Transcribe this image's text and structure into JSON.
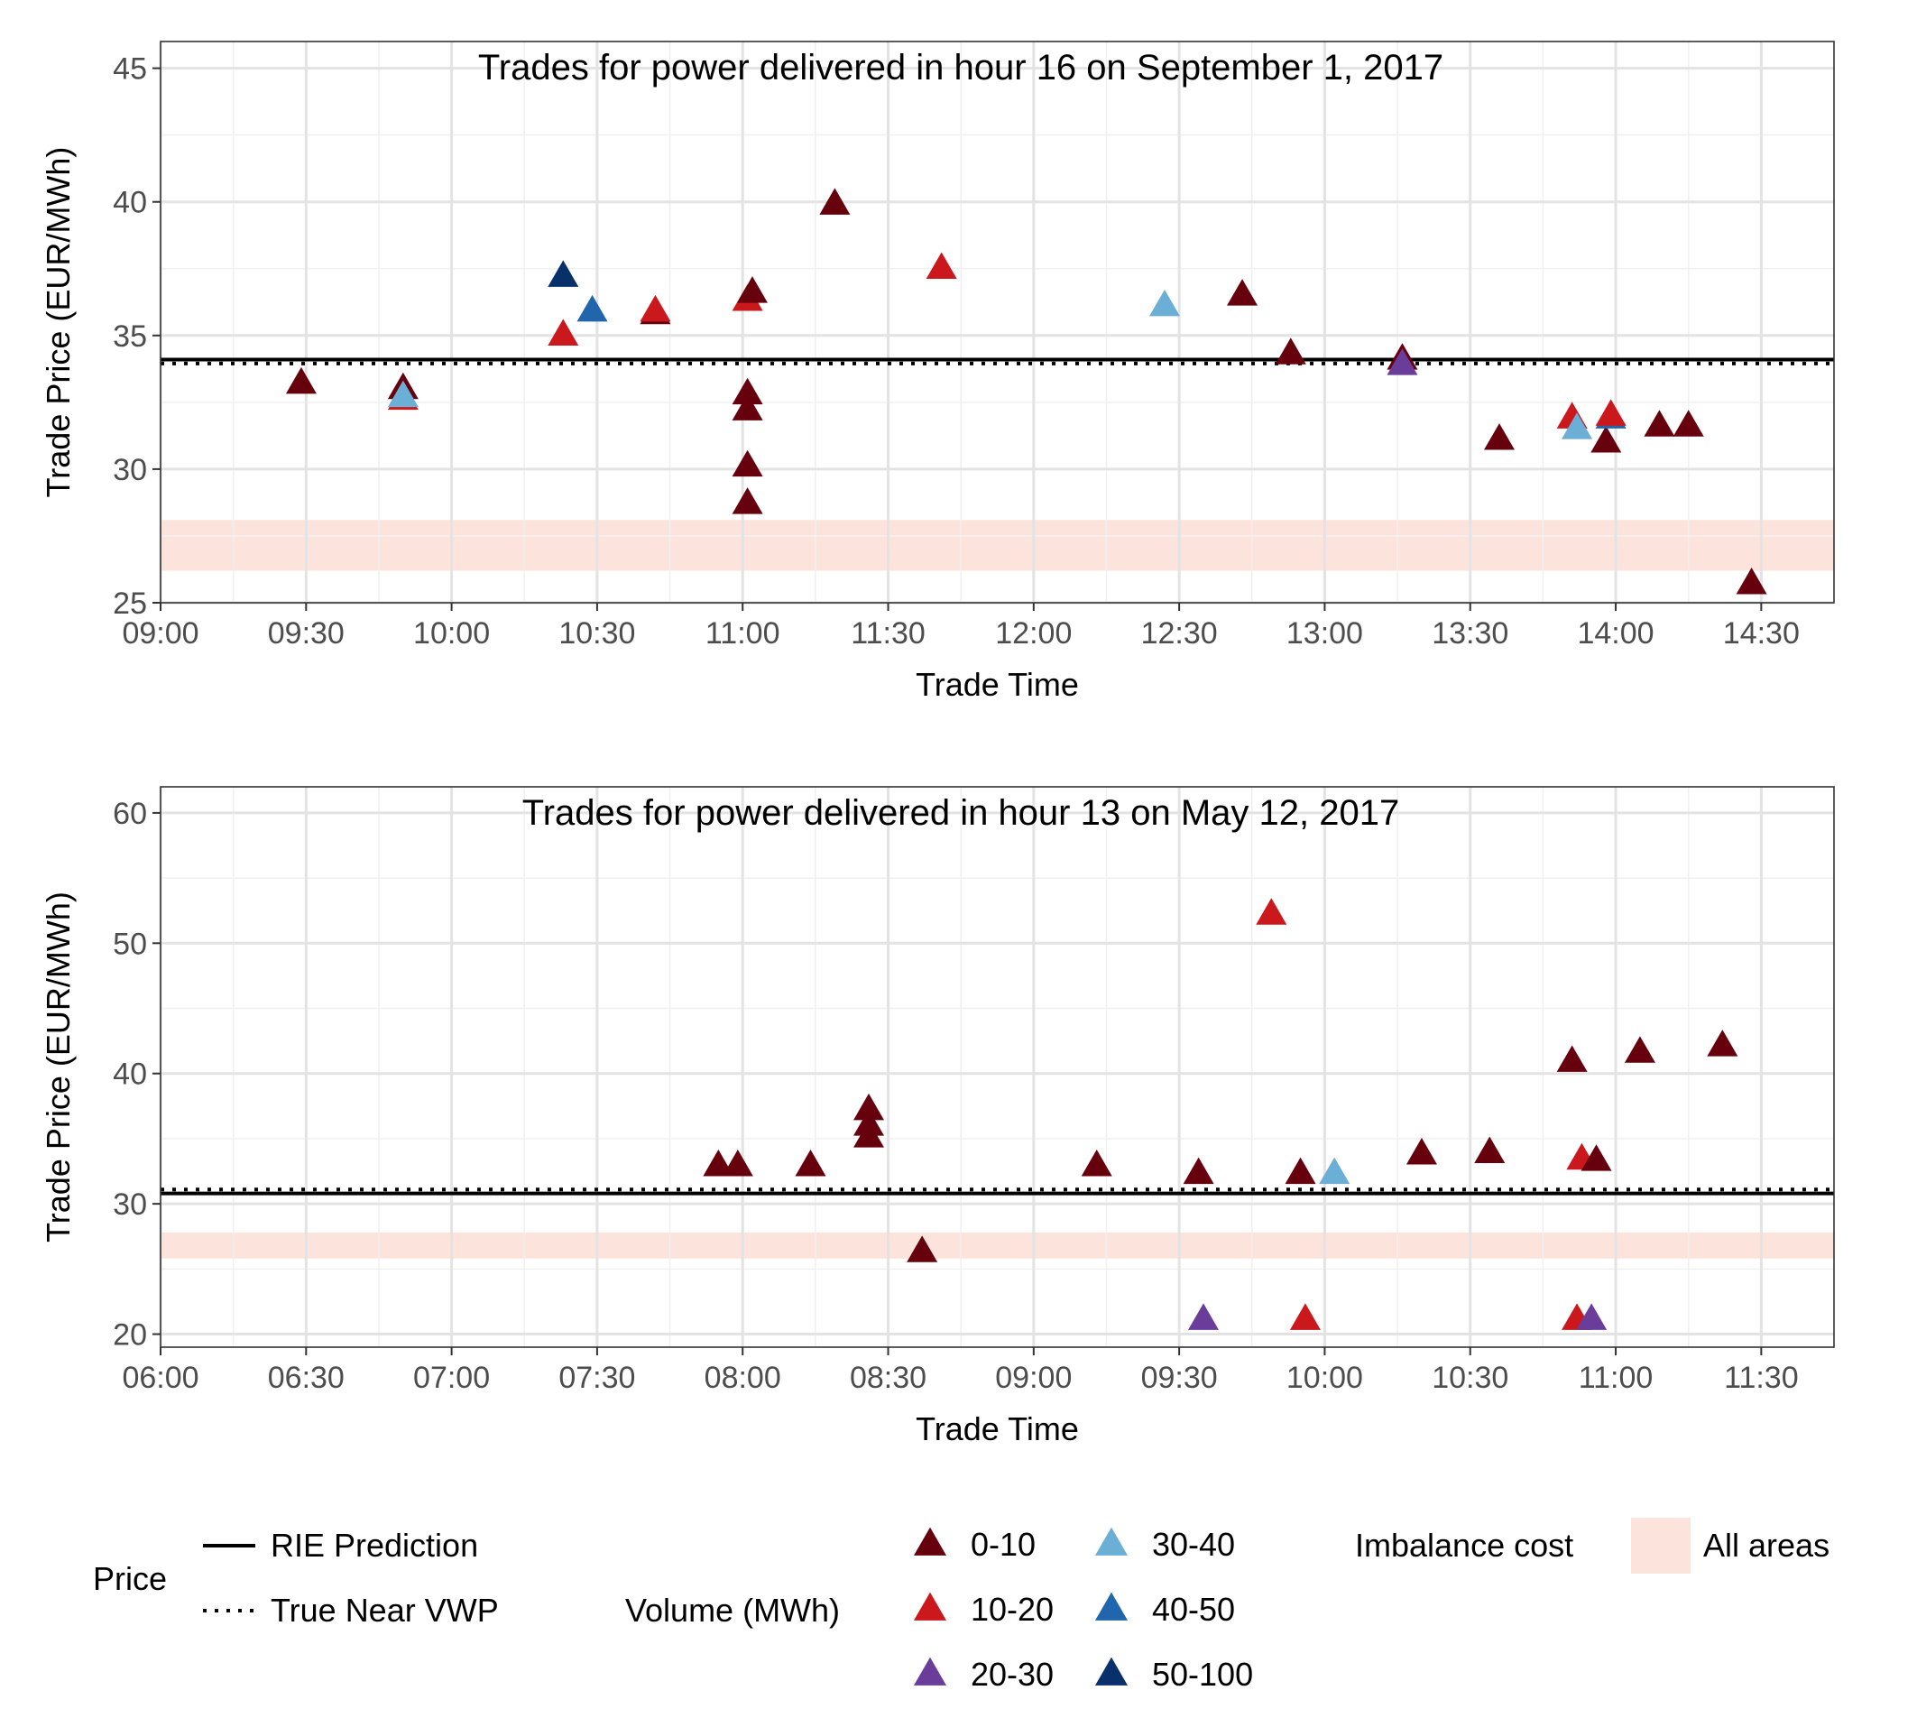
{
  "chart_data": [
    {
      "type": "scatter",
      "title": "Trades for power delivered in hour 16 on September 1, 2017",
      "xlabel": "Trade Time",
      "ylabel": "Trade Price (EUR/MWh)",
      "x_unit": "clock time (HH:MM)",
      "xlim": [
        "09:00",
        "14:45"
      ],
      "ylim": [
        25,
        46
      ],
      "xticks": [
        "09:00",
        "09:30",
        "10:00",
        "10:30",
        "11:00",
        "11:30",
        "12:00",
        "12:30",
        "13:00",
        "13:30",
        "14:00",
        "14:30"
      ],
      "yticks": [
        25,
        30,
        35,
        40,
        45
      ],
      "grid": true,
      "rie_prediction": 34.1,
      "true_near_vwp": 33.95,
      "imbalance_band": [
        26.2,
        28.1
      ],
      "points": [
        {
          "t": "09:29",
          "price": 33.2,
          "vol": "0-10"
        },
        {
          "t": "09:50",
          "price": 33.0,
          "vol": "0-10"
        },
        {
          "t": "09:50",
          "price": 32.6,
          "vol": "10-20"
        },
        {
          "t": "09:50",
          "price": 32.7,
          "vol": "30-40"
        },
        {
          "t": "10:23",
          "price": 35.0,
          "vol": "10-20"
        },
        {
          "t": "10:23",
          "price": 37.2,
          "vol": "50-100"
        },
        {
          "t": "10:29",
          "price": 35.9,
          "vol": "40-50"
        },
        {
          "t": "10:42",
          "price": 35.8,
          "vol": "0-10"
        },
        {
          "t": "10:42",
          "price": 35.9,
          "vol": "10-20"
        },
        {
          "t": "11:01",
          "price": 36.3,
          "vol": "10-20"
        },
        {
          "t": "11:02",
          "price": 36.6,
          "vol": "0-10"
        },
        {
          "t": "11:01",
          "price": 32.8,
          "vol": "0-10"
        },
        {
          "t": "11:01",
          "price": 32.2,
          "vol": "0-10"
        },
        {
          "t": "11:01",
          "price": 30.1,
          "vol": "0-10"
        },
        {
          "t": "11:01",
          "price": 28.7,
          "vol": "0-10"
        },
        {
          "t": "11:19",
          "price": 39.9,
          "vol": "0-10"
        },
        {
          "t": "11:41",
          "price": 37.5,
          "vol": "10-20"
        },
        {
          "t": "12:27",
          "price": 36.1,
          "vol": "30-40"
        },
        {
          "t": "12:43",
          "price": 36.5,
          "vol": "0-10"
        },
        {
          "t": "12:53",
          "price": 34.3,
          "vol": "0-10"
        },
        {
          "t": "13:16",
          "price": 34.1,
          "vol": "0-10"
        },
        {
          "t": "13:16",
          "price": 33.9,
          "vol": "20-30"
        },
        {
          "t": "13:36",
          "price": 31.1,
          "vol": "0-10"
        },
        {
          "t": "13:51",
          "price": 31.9,
          "vol": "10-20"
        },
        {
          "t": "13:52",
          "price": 31.5,
          "vol": "30-40"
        },
        {
          "t": "13:58",
          "price": 31.0,
          "vol": "0-10"
        },
        {
          "t": "13:59",
          "price": 31.9,
          "vol": "40-50"
        },
        {
          "t": "13:59",
          "price": 32.0,
          "vol": "10-20"
        },
        {
          "t": "14:09",
          "price": 31.6,
          "vol": "0-10"
        },
        {
          "t": "14:15",
          "price": 31.6,
          "vol": "0-10"
        },
        {
          "t": "14:28",
          "price": 25.7,
          "vol": "0-10"
        }
      ]
    },
    {
      "type": "scatter",
      "title": "Trades for power delivered in hour 13 on May 12, 2017",
      "xlabel": "Trade Time",
      "ylabel": "Trade Price (EUR/MWh)",
      "x_unit": "clock time (HH:MM)",
      "xlim": [
        "06:00",
        "11:45"
      ],
      "ylim": [
        19,
        62
      ],
      "xticks": [
        "06:00",
        "06:30",
        "07:00",
        "07:30",
        "08:00",
        "08:30",
        "09:00",
        "09:30",
        "10:00",
        "10:30",
        "11:00",
        "11:30"
      ],
      "yticks": [
        20,
        30,
        40,
        50,
        60
      ],
      "grid": true,
      "rie_prediction": 30.8,
      "true_near_vwp": 31.1,
      "imbalance_band": [
        25.8,
        27.8
      ],
      "points": [
        {
          "t": "07:55",
          "price": 32.9,
          "vol": "0-10"
        },
        {
          "t": "07:59",
          "price": 32.9,
          "vol": "0-10"
        },
        {
          "t": "08:14",
          "price": 32.9,
          "vol": "0-10"
        },
        {
          "t": "08:26",
          "price": 37.2,
          "vol": "0-10"
        },
        {
          "t": "08:26",
          "price": 36.0,
          "vol": "0-10"
        },
        {
          "t": "08:26",
          "price": 35.1,
          "vol": "0-10"
        },
        {
          "t": "08:37",
          "price": 26.3,
          "vol": "0-10"
        },
        {
          "t": "09:13",
          "price": 32.9,
          "vol": "0-10"
        },
        {
          "t": "09:34",
          "price": 32.3,
          "vol": "0-10"
        },
        {
          "t": "09:35",
          "price": 21.1,
          "vol": "20-30"
        },
        {
          "t": "09:49",
          "price": 52.2,
          "vol": "10-20"
        },
        {
          "t": "09:55",
          "price": 32.3,
          "vol": "0-10"
        },
        {
          "t": "09:56",
          "price": 21.1,
          "vol": "10-20"
        },
        {
          "t": "10:02",
          "price": 32.3,
          "vol": "30-40"
        },
        {
          "t": "10:20",
          "price": 33.8,
          "vol": "0-10"
        },
        {
          "t": "10:34",
          "price": 33.9,
          "vol": "0-10"
        },
        {
          "t": "10:51",
          "price": 40.9,
          "vol": "0-10"
        },
        {
          "t": "10:52",
          "price": 21.1,
          "vol": "10-20"
        },
        {
          "t": "10:53",
          "price": 33.4,
          "vol": "10-20"
        },
        {
          "t": "10:56",
          "price": 33.3,
          "vol": "0-10"
        },
        {
          "t": "10:55",
          "price": 21.1,
          "vol": "20-30"
        },
        {
          "t": "11:05",
          "price": 41.6,
          "vol": "0-10"
        },
        {
          "t": "11:22",
          "price": 42.1,
          "vol": "0-10"
        }
      ]
    }
  ],
  "legend": {
    "price": {
      "title": "Price",
      "items": [
        {
          "label": "RIE Prediction",
          "style": "solid"
        },
        {
          "label": "True Near VWP",
          "style": "dotted"
        }
      ]
    },
    "volume": {
      "title": "Volume (MWh)",
      "items": [
        {
          "label": "0-10",
          "color": "#67000d"
        },
        {
          "label": "10-20",
          "color": "#cb181d"
        },
        {
          "label": "20-30",
          "color": "#6a3d9a"
        },
        {
          "label": "30-40",
          "color": "#6baed6"
        },
        {
          "label": "40-50",
          "color": "#2166ac"
        },
        {
          "label": "50-100",
          "color": "#08306b"
        }
      ]
    },
    "imbalance": {
      "title": "Imbalance cost",
      "label": "All areas",
      "color": "#fce4dc"
    }
  }
}
